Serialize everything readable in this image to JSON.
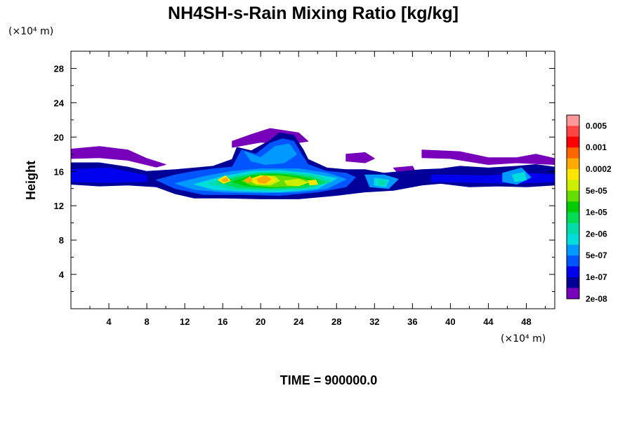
{
  "chart_data": {
    "type": "heatmap",
    "title": "NH4SH-s-Rain Mixing Ratio [kg/kg]",
    "ylabel": "Height",
    "xunit": "(×10⁴ m)",
    "yunit": "(×10⁴ m)",
    "footer": "TIME = 900000.0",
    "xlim": [
      0,
      51
    ],
    "ylim": [
      0,
      30
    ],
    "xticks": [
      "4",
      "8",
      "12",
      "16",
      "20",
      "24",
      "28",
      "32",
      "36",
      "40",
      "44",
      "48"
    ],
    "yticks": [
      "4",
      "8",
      "12",
      "16",
      "20",
      "24",
      "28"
    ],
    "colorbar": {
      "labels": [
        "0.005",
        "0.001",
        "0.0002",
        "5e-05",
        "1e-05",
        "2e-06",
        "5e-07",
        "1e-07",
        "2e-08"
      ],
      "colors": [
        "#ff9999",
        "#ff4444",
        "#ff0000",
        "#ff6600",
        "#ffaa00",
        "#ffe600",
        "#ccee00",
        "#66dd00",
        "#00cc00",
        "#00dd55",
        "#00ddaa",
        "#00dddd",
        "#0099ff",
        "#0055ff",
        "#0000ee",
        "#000099",
        "#7700bb"
      ]
    },
    "layers": [
      {
        "level": 0,
        "polygons": [
          [
            [
              0,
              18.6
            ],
            [
              3,
              18.9
            ],
            [
              6,
              18.5
            ],
            [
              8,
              17.5
            ],
            [
              10,
              16.8
            ],
            [
              9,
              16.5
            ],
            [
              6,
              17.3
            ],
            [
              3,
              17.6
            ],
            [
              0,
              17.5
            ]
          ],
          [
            [
              37,
              18.5
            ],
            [
              41,
              18.3
            ],
            [
              44,
              17.6
            ],
            [
              47,
              17.6
            ],
            [
              49,
              18
            ],
            [
              51,
              17.5
            ],
            [
              51,
              16.8
            ],
            [
              47,
              17
            ],
            [
              44,
              16.8
            ],
            [
              40,
              17.5
            ],
            [
              37,
              17.6
            ]
          ],
          [
            [
              29,
              18.0
            ],
            [
              31,
              18.2
            ],
            [
              32,
              17.5
            ],
            [
              31,
              17.0
            ],
            [
              29,
              17.2
            ]
          ],
          [
            [
              34,
              16.4
            ],
            [
              36,
              16.6
            ],
            [
              36.5,
              15.6
            ],
            [
              35,
              15.2
            ]
          ],
          [
            [
              17,
              19.5
            ],
            [
              19,
              20.3
            ],
            [
              21,
              21.0
            ],
            [
              24,
              20.5
            ],
            [
              25,
              19.5
            ],
            [
              23,
              19.2
            ],
            [
              20,
              19.4
            ],
            [
              17,
              18.8
            ]
          ]
        ]
      },
      {
        "level": 1,
        "polygons": [
          [
            [
              0,
              17
            ],
            [
              3,
              17
            ],
            [
              6,
              16.5
            ],
            [
              8,
              16
            ],
            [
              11,
              16.2
            ],
            [
              13,
              16.4
            ],
            [
              15,
              16.6
            ],
            [
              17,
              17.4
            ],
            [
              17.5,
              18.8
            ],
            [
              19,
              18.4
            ],
            [
              21,
              19.6
            ],
            [
              22,
              20.5
            ],
            [
              23.5,
              20.2
            ],
            [
              24.5,
              18.5
            ],
            [
              25,
              17.4
            ],
            [
              27,
              16.4
            ],
            [
              29,
              16.2
            ],
            [
              31,
              16.2
            ],
            [
              33,
              15.8
            ],
            [
              35,
              16
            ],
            [
              37,
              16.2
            ],
            [
              39,
              16.3
            ],
            [
              41,
              16.6
            ],
            [
              44,
              16.4
            ],
            [
              47,
              16.6
            ],
            [
              49,
              16.8
            ],
            [
              51,
              16.5
            ],
            [
              51,
              14.4
            ],
            [
              48,
              14.2
            ],
            [
              45,
              14.3
            ],
            [
              42,
              14.2
            ],
            [
              39,
              14.6
            ],
            [
              37,
              14.4
            ],
            [
              34,
              13.8
            ],
            [
              31,
              13.6
            ],
            [
              28,
              13.2
            ],
            [
              24,
              12.8
            ],
            [
              20,
              12.8
            ],
            [
              16,
              12.9
            ],
            [
              13,
              12.9
            ],
            [
              11,
              13.4
            ],
            [
              9,
              14.2
            ],
            [
              6,
              14.4
            ],
            [
              3,
              14.3
            ],
            [
              0,
              14.5
            ]
          ]
        ]
      },
      {
        "level": 2,
        "polygons": [
          [
            [
              0,
              16.2
            ],
            [
              4,
              16.4
            ],
            [
              8,
              15.5
            ],
            [
              8,
              14.8
            ],
            [
              4,
              14.7
            ],
            [
              0,
              14.8
            ]
          ],
          [
            [
              38,
              15.6
            ],
            [
              44,
              15.5
            ],
            [
              48,
              15.8
            ],
            [
              51,
              15.6
            ],
            [
              51,
              14.8
            ],
            [
              47,
              14.6
            ],
            [
              43,
              14.7
            ],
            [
              38,
              14.8
            ]
          ]
        ]
      },
      {
        "level": 3,
        "polygons": [
          [
            [
              9,
              15.0
            ],
            [
              11,
              15.6
            ],
            [
              13,
              16.0
            ],
            [
              15,
              16.3
            ],
            [
              17,
              16.5
            ],
            [
              18,
              18.5
            ],
            [
              19.5,
              18.0
            ],
            [
              21,
              19.3
            ],
            [
              22.3,
              19.8
            ],
            [
              23.5,
              19.5
            ],
            [
              24.3,
              18.0
            ],
            [
              25,
              16.8
            ],
            [
              27,
              16.0
            ],
            [
              29,
              15.8
            ],
            [
              30,
              15.3
            ],
            [
              29,
              14.2
            ],
            [
              26,
              13.6
            ],
            [
              22,
              13.2
            ],
            [
              18,
              13.3
            ],
            [
              14,
              13.3
            ],
            [
              11,
              14.0
            ]
          ]
        ]
      },
      {
        "level": 4,
        "polygons": [
          [
            [
              11,
              14.6
            ],
            [
              14,
              15.4
            ],
            [
              17,
              16.0
            ],
            [
              20,
              16.3
            ],
            [
              24,
              16.3
            ],
            [
              27,
              15.8
            ],
            [
              29,
              15.1
            ],
            [
              27,
              14.0
            ],
            [
              24,
              13.6
            ],
            [
              20,
              13.5
            ],
            [
              16,
              13.6
            ],
            [
              13,
              13.9
            ]
          ],
          [
            [
              18.3,
              18.3
            ],
            [
              20,
              17.6
            ],
            [
              21.5,
              18.9
            ],
            [
              23,
              19.2
            ],
            [
              23.8,
              18.0
            ],
            [
              22.5,
              17.0
            ],
            [
              20.5,
              16.8
            ],
            [
              19,
              17.2
            ]
          ],
          [
            [
              31,
              15.6
            ],
            [
              33,
              15.6
            ],
            [
              34.5,
              15.1
            ],
            [
              33.5,
              14.0
            ],
            [
              31.5,
              14.2
            ]
          ],
          [
            [
              45.5,
              15.8
            ],
            [
              47.5,
              16.4
            ],
            [
              48.5,
              15.3
            ],
            [
              47,
              14.5
            ],
            [
              45.5,
              14.8
            ]
          ]
        ]
      },
      {
        "level": 5,
        "polygons": [
          [
            [
              13,
              14.5
            ],
            [
              16,
              15.4
            ],
            [
              19,
              16.0
            ],
            [
              22,
              16.1
            ],
            [
              25,
              15.8
            ],
            [
              28,
              15.2
            ],
            [
              26,
              14.0
            ],
            [
              22,
              13.6
            ],
            [
              18,
              13.7
            ],
            [
              15,
              13.9
            ]
          ],
          [
            [
              32,
              15.2
            ],
            [
              33.5,
              15.0
            ],
            [
              33.2,
              14.2
            ],
            [
              32,
              14.4
            ]
          ],
          [
            [
              46.5,
              15.6
            ],
            [
              47.8,
              15.9
            ],
            [
              48,
              15.0
            ],
            [
              46.8,
              14.8
            ]
          ]
        ]
      },
      {
        "level": 6,
        "polygons": [
          [
            [
              14.5,
              14.6
            ],
            [
              17,
              15.4
            ],
            [
              20,
              15.9
            ],
            [
              23,
              15.9
            ],
            [
              26,
              15.5
            ],
            [
              27.5,
              14.8
            ],
            [
              25,
              14.0
            ],
            [
              21,
              13.8
            ],
            [
              17,
              13.9
            ]
          ],
          [
            [
              32.5,
              15.0
            ],
            [
              33.2,
              14.9
            ],
            [
              33,
              14.4
            ],
            [
              32.4,
              14.5
            ]
          ]
        ]
      },
      {
        "level": 7,
        "polygons": [
          [
            [
              15.5,
              14.7
            ],
            [
              17.5,
              15.3
            ],
            [
              20,
              15.8
            ],
            [
              23,
              15.7
            ],
            [
              25.5,
              15.3
            ],
            [
              26.8,
              14.7
            ],
            [
              24.5,
              14.1
            ],
            [
              21,
              14.0
            ],
            [
              17.5,
              14.1
            ]
          ]
        ]
      },
      {
        "level": 8,
        "polygons": [
          [
            [
              17,
              14.8
            ],
            [
              19,
              15.5
            ],
            [
              21.5,
              15.7
            ],
            [
              24,
              15.4
            ],
            [
              26,
              14.9
            ],
            [
              24,
              14.3
            ],
            [
              21,
              14.1
            ],
            [
              18.5,
              14.3
            ]
          ]
        ]
      },
      {
        "level": 9,
        "polygons": [
          [
            [
              18,
              14.9
            ],
            [
              20,
              15.5
            ],
            [
              22,
              15.5
            ],
            [
              24,
              15.2
            ],
            [
              25.5,
              14.8
            ],
            [
              23.5,
              14.3
            ],
            [
              21,
              14.2
            ],
            [
              19,
              14.4
            ]
          ]
        ]
      },
      {
        "level": 10,
        "polygons": [
          [
            [
              18.7,
              15.0
            ],
            [
              20,
              15.5
            ],
            [
              21.5,
              15.4
            ],
            [
              22,
              14.9
            ],
            [
              21,
              14.4
            ],
            [
              19.5,
              14.5
            ]
          ],
          [
            [
              22.5,
              14.9
            ],
            [
              24,
              15.1
            ],
            [
              25,
              14.7
            ],
            [
              24,
              14.3
            ],
            [
              22.8,
              14.4
            ]
          ]
        ]
      },
      {
        "level": 11,
        "polygons": [
          [
            [
              19,
              15.1
            ],
            [
              20,
              15.5
            ],
            [
              21.2,
              15.3
            ],
            [
              21.5,
              14.9
            ],
            [
              20.5,
              14.5
            ],
            [
              19.5,
              14.6
            ]
          ],
          [
            [
              15.5,
              15.0
            ],
            [
              16.3,
              15.5
            ],
            [
              16.8,
              14.9
            ],
            [
              16.1,
              14.6
            ]
          ],
          [
            [
              25,
              14.9
            ],
            [
              25.8,
              15.0
            ],
            [
              26,
              14.5
            ],
            [
              25.2,
              14.4
            ]
          ]
        ]
      },
      {
        "level": 12,
        "polygons": [
          [
            [
              19.6,
              15.1
            ],
            [
              20.5,
              15.5
            ],
            [
              21.1,
              15.1
            ],
            [
              20.5,
              14.6
            ],
            [
              19.8,
              14.7
            ]
          ],
          [
            [
              15.9,
              15.0
            ],
            [
              16.4,
              15.3
            ],
            [
              16.6,
              14.9
            ],
            [
              16.1,
              14.8
            ]
          ],
          [
            [
              18.3,
              15.0
            ],
            [
              18.9,
              15.4
            ],
            [
              19.1,
              14.9
            ],
            [
              18.6,
              14.7
            ]
          ]
        ]
      }
    ]
  }
}
